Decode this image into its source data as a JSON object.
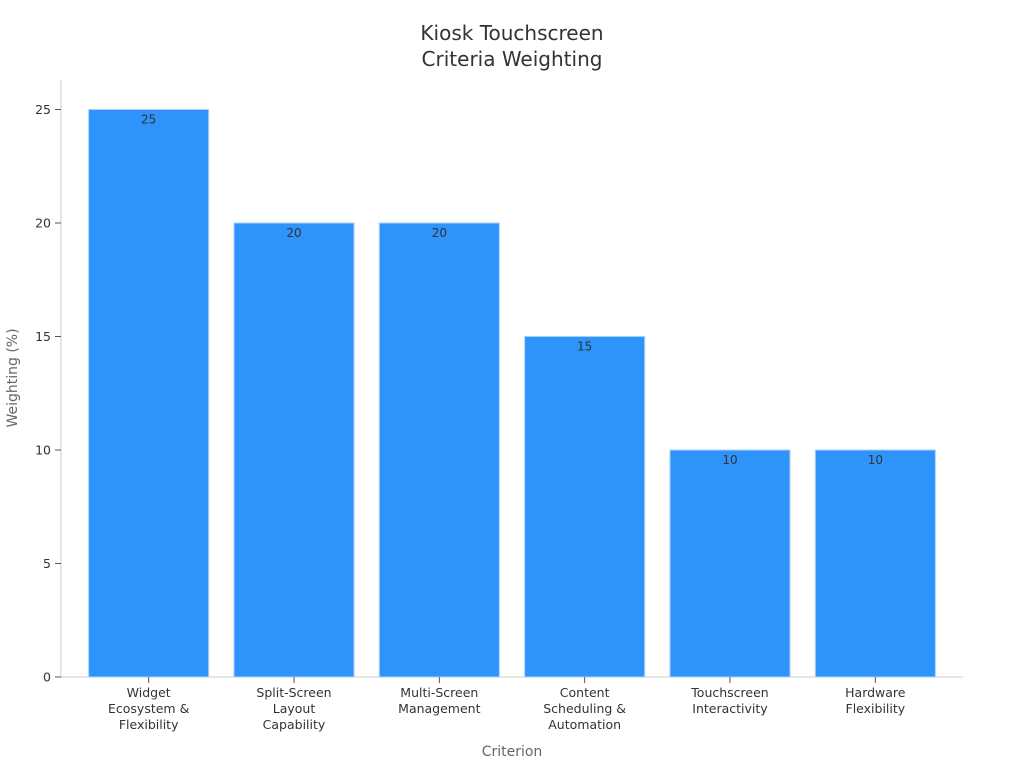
{
  "chart_data": {
    "type": "bar",
    "title": [
      "Kiosk Touchscreen",
      "Criteria Weighting"
    ],
    "xlabel": "Criterion",
    "ylabel": "Weighting (%)",
    "categories": [
      [
        "Widget",
        "Ecosystem &",
        "Flexibility"
      ],
      [
        "Split-Screen",
        "Layout",
        "Capability"
      ],
      [
        "Multi-Screen",
        "Management"
      ],
      [
        "Content",
        "Scheduling &",
        "Automation"
      ],
      [
        "Touchscreen",
        "Interactivity"
      ],
      [
        "Hardware",
        "Flexibility"
      ]
    ],
    "values": [
      25,
      20,
      20,
      15,
      10,
      10
    ],
    "data_labels": [
      "25",
      "20",
      "20",
      "15",
      "10",
      "10"
    ],
    "ylim": [
      0,
      26.3
    ],
    "yticks": [
      0,
      5,
      10,
      15,
      20,
      25
    ],
    "grid": false,
    "colors": {
      "bar": "#2e93fa",
      "bar_edge": "#a9d1fb",
      "axis": "#cccccc",
      "tick": "#555555"
    }
  }
}
